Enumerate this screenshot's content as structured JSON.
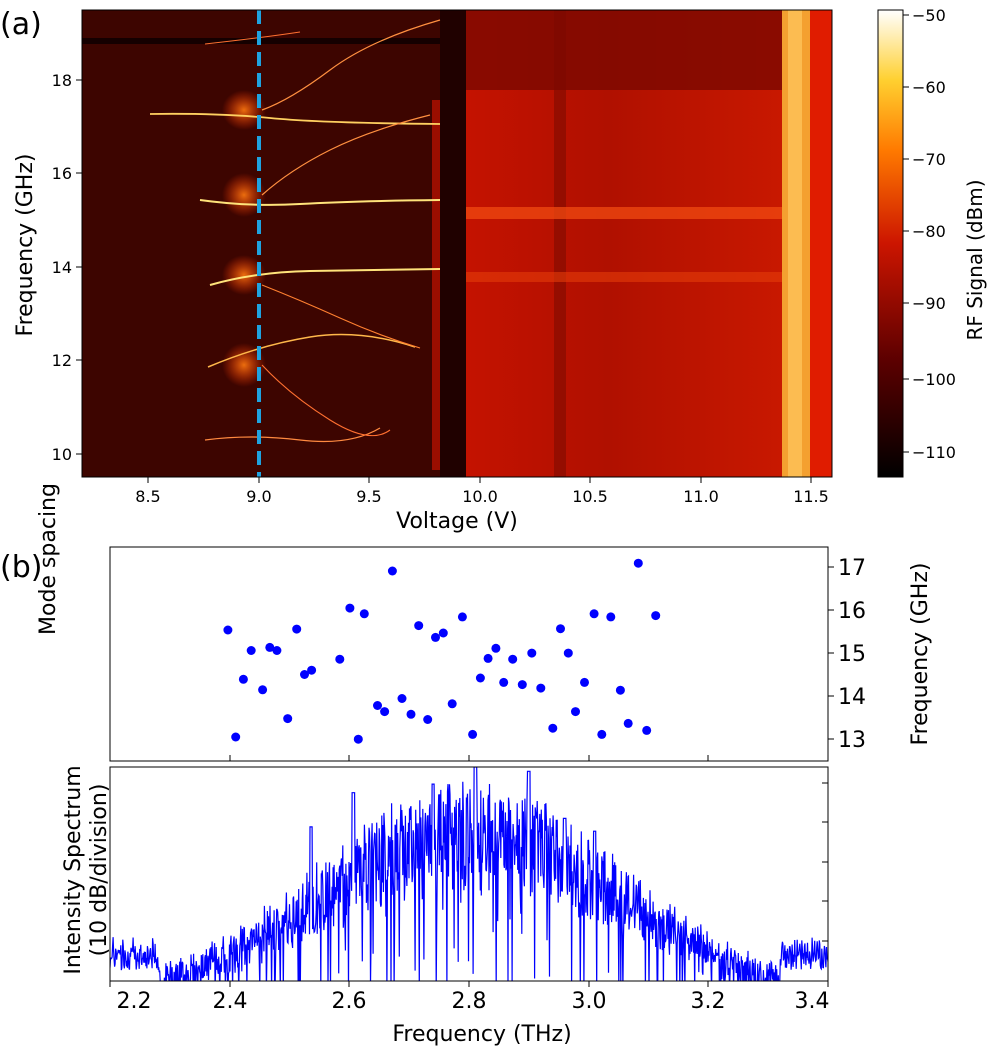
{
  "panel_a": {
    "label": "(a)",
    "xlabel": "Voltage (V)",
    "ylabel": "Frequency (GHz)",
    "xticks": [
      "8.5",
      "9.0",
      "9.5",
      "10.0",
      "10.5",
      "11.0",
      "11.5"
    ],
    "yticks": [
      "10",
      "12",
      "14",
      "16",
      "18"
    ],
    "colorbar_label": "RF Signal (dBm)",
    "colorbar_ticks": [
      "−50",
      "−60",
      "−70",
      "−80",
      "−90",
      "−100",
      "−110"
    ],
    "colors": {
      "dashed_line": "#1fa3e0",
      "bright": "#ffffff",
      "dark": "#000000"
    }
  },
  "panel_b": {
    "label": "(b)",
    "top_ylabel_left": "Mode spacing",
    "top_ylabel_right": "Frequency (GHz)",
    "top_yticks": [
      "13",
      "14",
      "15",
      "16",
      "17"
    ],
    "bottom_ylabel_line1": "Intensity Spectrum",
    "bottom_ylabel_line2": "(10 dB/division)",
    "xlabel": "Frequency (THz)",
    "xticks": [
      "2.2",
      "2.4",
      "2.6",
      "2.8",
      "3.0",
      "3.2",
      "3.4"
    ],
    "colors": {
      "markers": "#0000ff",
      "spectrum": "#0000ff"
    }
  },
  "chart_data": [
    {
      "type": "heatmap",
      "title": "(a)",
      "xlabel": "Voltage (V)",
      "ylabel": "Frequency (GHz)",
      "xlim": [
        8.2,
        11.6
      ],
      "ylim": [
        9.5,
        19.4
      ],
      "colorbar": {
        "label": "RF Signal (dBm)",
        "range": [
          -114,
          -49
        ]
      },
      "annotations": [
        {
          "type": "dashed_vertical_line",
          "x": 9.0
        }
      ],
      "features": {
        "mode_lines_near_9V_GHz": [
          10.3,
          11.9,
          13.7,
          15.5,
          17.2
        ],
        "broadband_region_V": [
          9.95,
          11.4
        ],
        "bright_band_V": [
          11.38,
          11.5
        ]
      }
    },
    {
      "type": "scatter",
      "xlabel": "Frequency (THz)",
      "ylabel": "Mode spacing",
      "ylabel_right": "Frequency (GHz)",
      "xlim": [
        2.2,
        3.4
      ],
      "ylim": [
        12.55,
        17.45
      ],
      "x": [
        2.397,
        2.41,
        2.423,
        2.436,
        2.455,
        2.467,
        2.479,
        2.497,
        2.512,
        2.525,
        2.537,
        2.584,
        2.601,
        2.615,
        2.625,
        2.647,
        2.659,
        2.672,
        2.688,
        2.703,
        2.716,
        2.731,
        2.744,
        2.757,
        2.772,
        2.789,
        2.806,
        2.819,
        2.832,
        2.845,
        2.858,
        2.873,
        2.889,
        2.905,
        2.92,
        2.94,
        2.953,
        2.966,
        2.978,
        2.993,
        3.009,
        3.022,
        3.037,
        3.053,
        3.066,
        3.083,
        3.097,
        3.112
      ],
      "y": [
        15.55,
        13.1,
        14.42,
        15.08,
        14.18,
        15.15,
        15.08,
        13.52,
        15.57,
        14.53,
        14.63,
        14.88,
        16.05,
        13.05,
        15.92,
        13.82,
        13.68,
        16.9,
        13.98,
        13.62,
        15.65,
        13.5,
        15.38,
        15.48,
        13.86,
        15.85,
        13.16,
        14.45,
        14.9,
        15.13,
        14.35,
        14.88,
        14.3,
        15.02,
        14.22,
        13.3,
        15.58,
        15.02,
        13.68,
        14.35,
        15.92,
        13.16,
        15.85,
        14.17,
        13.41,
        17.08,
        13.25,
        15.88
      ]
    },
    {
      "type": "line",
      "xlabel": "Frequency (THz)",
      "ylabel": "Intensity Spectrum (10 dB/division)",
      "xlim": [
        2.2,
        3.4
      ],
      "ylim_divisions": [
        0,
        5
      ],
      "envelope": {
        "peak_x": 2.8,
        "peak_divisions": 5.0,
        "half_width_THz": 0.32
      },
      "peaks": [
        {
          "x": 2.536,
          "y": 3.6
        },
        {
          "x": 2.607,
          "y": 4.4
        },
        {
          "x": 2.74,
          "y": 4.6
        },
        {
          "x": 2.811,
          "y": 5.0
        },
        {
          "x": 2.9,
          "y": 4.9
        },
        {
          "x": 2.96,
          "y": 3.8
        },
        {
          "x": 3.01,
          "y": 3.5
        }
      ]
    }
  ]
}
